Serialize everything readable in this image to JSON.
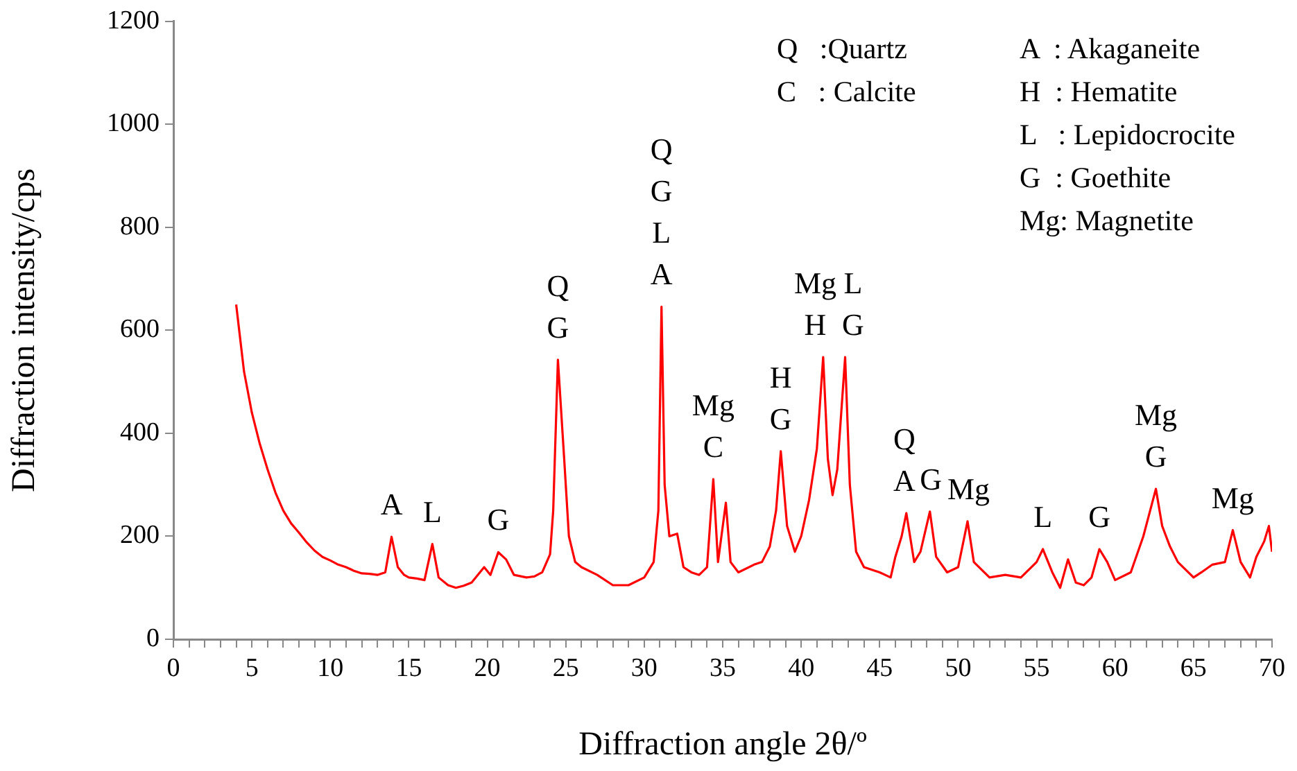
{
  "chart_data": {
    "type": "line",
    "xlabel": "Diffraction angle 2θ/º",
    "ylabel": "Diffraction intensity/cps",
    "xlim": [
      0,
      70
    ],
    "ylim": [
      0,
      1200
    ],
    "xticks": [
      0,
      {
        "value": 1,
        "label": null
      },
      {
        "value": 2,
        "label": null
      },
      {
        "value": 3,
        "label": null
      },
      {
        "value": 4,
        "label": null
      },
      5,
      {
        "value": 6,
        "label": null
      },
      {
        "value": 7,
        "label": null
      },
      {
        "value": 8,
        "label": null
      },
      {
        "value": 9,
        "label": null
      },
      10,
      {
        "value": 11,
        "label": null
      },
      {
        "value": 12,
        "label": null
      },
      {
        "value": 13,
        "label": null
      },
      {
        "value": 14,
        "label": null
      },
      15,
      {
        "value": 16,
        "label": null
      },
      {
        "value": 17,
        "label": null
      },
      {
        "value": 18,
        "label": null
      },
      {
        "value": 19,
        "label": null
      },
      20,
      {
        "value": 21,
        "label": null
      },
      {
        "value": 22,
        "label": null
      },
      {
        "value": 23,
        "label": null
      },
      {
        "value": 24,
        "label": null
      },
      25,
      {
        "value": 26,
        "label": null
      },
      {
        "value": 27,
        "label": null
      },
      {
        "value": 28,
        "label": null
      },
      {
        "value": 29,
        "label": null
      },
      30,
      {
        "value": 31,
        "label": null
      },
      {
        "value": 32,
        "label": null
      },
      {
        "value": 33,
        "label": null
      },
      {
        "value": 34,
        "label": null
      },
      35,
      {
        "value": 36,
        "label": null
      },
      {
        "value": 37,
        "label": null
      },
      {
        "value": 38,
        "label": null
      },
      {
        "value": 39,
        "label": null
      },
      40,
      {
        "value": 41,
        "label": null
      },
      {
        "value": 42,
        "label": null
      },
      {
        "value": 43,
        "label": null
      },
      {
        "value": 44,
        "label": null
      },
      45,
      {
        "value": 46,
        "label": null
      },
      {
        "value": 47,
        "label": null
      },
      {
        "value": 48,
        "label": null
      },
      {
        "value": 49,
        "label": null
      },
      50,
      {
        "value": 51,
        "label": null
      },
      {
        "value": 52,
        "label": null
      },
      {
        "value": 53,
        "label": null
      },
      {
        "value": 54,
        "label": null
      },
      55,
      {
        "value": 56,
        "label": null
      },
      {
        "value": 57,
        "label": null
      },
      {
        "value": 58,
        "label": null
      },
      {
        "value": 59,
        "label": null
      },
      60,
      {
        "value": 61,
        "label": null
      },
      {
        "value": 62,
        "label": null
      },
      {
        "value": 63,
        "label": null
      },
      {
        "value": 64,
        "label": null
      },
      65,
      {
        "value": 66,
        "label": null
      },
      {
        "value": 67,
        "label": null
      },
      {
        "value": 68,
        "label": null
      },
      {
        "value": 69,
        "label": null
      },
      70
    ],
    "yticks": [
      0,
      200,
      400,
      600,
      800,
      1000,
      1200
    ],
    "grid": false,
    "legend": false,
    "marker": "none",
    "line_style": "solid",
    "series": [
      {
        "color": "#ff0000",
        "x": [
          4,
          4.5,
          5,
          5.5,
          6,
          6.5,
          7,
          7.5,
          8,
          8.5,
          9,
          9.5,
          10,
          10.5,
          11,
          11.5,
          12,
          12.5,
          13,
          13.5,
          13.9,
          14.3,
          14.7,
          15,
          15.5,
          16,
          16.5,
          16.9,
          17.5,
          18,
          18.5,
          19,
          19.8,
          20.2,
          20.7,
          21.2,
          21.7,
          22.5,
          23,
          23.5,
          24,
          24.2,
          24.5,
          24.9,
          25.2,
          25.6,
          26,
          27,
          28,
          29,
          30,
          30.6,
          30.9,
          31.1,
          31.3,
          31.6,
          32.1,
          32.5,
          33,
          33.5,
          34,
          34.4,
          34.7,
          35.2,
          35.5,
          36,
          37,
          37.5,
          38,
          38.4,
          38.7,
          39.1,
          39.6,
          40,
          40.5,
          41,
          41.4,
          41.7,
          42,
          42.3,
          42.8,
          43.1,
          43.5,
          44,
          45,
          45.7,
          46,
          46.4,
          46.7,
          47.2,
          47.6,
          48.2,
          48.6,
          49.3,
          50,
          50.6,
          51,
          52,
          53,
          54,
          55,
          55.4,
          56,
          56.5,
          57,
          57.5,
          58,
          58.5,
          59,
          59.5,
          60,
          61,
          61.8,
          62.6,
          63,
          63.5,
          64,
          65,
          65.5,
          66.2,
          67,
          67.5,
          68,
          68.6,
          69,
          69.5,
          69.8,
          70
        ],
        "values": [
          650,
          520,
          440,
          380,
          330,
          285,
          250,
          225,
          207,
          188,
          172,
          160,
          153,
          145,
          140,
          133,
          128,
          127,
          125,
          130,
          199,
          140,
          125,
          120,
          118,
          115,
          185,
          120,
          105,
          100,
          104,
          110,
          140,
          125,
          169,
          155,
          125,
          120,
          122,
          130,
          165,
          250,
          543,
          350,
          200,
          150,
          140,
          125,
          105,
          105,
          120,
          150,
          250,
          646,
          300,
          200,
          205,
          140,
          130,
          125,
          140,
          311,
          150,
          265,
          150,
          130,
          145,
          150,
          180,
          250,
          365,
          220,
          170,
          200,
          270,
          370,
          548,
          350,
          280,
          330,
          548,
          300,
          170,
          140,
          130,
          120,
          160,
          200,
          245,
          150,
          170,
          248,
          160,
          130,
          140,
          229,
          150,
          120,
          125,
          120,
          150,
          175,
          130,
          100,
          155,
          110,
          105,
          120,
          175,
          150,
          115,
          130,
          200,
          292,
          220,
          180,
          150,
          120,
          130,
          145,
          150,
          212,
          150,
          120,
          160,
          190,
          220,
          170
        ]
      }
    ],
    "annotations": [
      {
        "text": "A",
        "x": 13.9,
        "y": 199
      },
      {
        "text": "L",
        "x": 16.5,
        "y": 185
      },
      {
        "text": "G",
        "x": 20.7,
        "y": 169
      },
      {
        "text": "Q\nG",
        "x": 24.5,
        "y": 543
      },
      {
        "text": "Q\nG\nL\nA",
        "x": 31.1,
        "y": 646
      },
      {
        "text": "Mg\nC",
        "x": 34.4,
        "y": 311
      },
      {
        "text": "H\nG",
        "x": 38.7,
        "y": 365
      },
      {
        "text": "Mg\nH",
        "x": 41.4,
        "y": 548
      },
      {
        "text": "L\nG",
        "x": 42.8,
        "y": 548
      },
      {
        "text": "Q\nA",
        "x": 46.7,
        "y": 245
      },
      {
        "text": "G",
        "x": 48.2,
        "y": 248
      },
      {
        "text": "Mg",
        "x": 50.6,
        "y": 229
      },
      {
        "text": "L",
        "x": 55.4,
        "y": 175
      },
      {
        "text": "G",
        "x": 59,
        "y": 175
      },
      {
        "text": "Mg\nG",
        "x": 62.6,
        "y": 292
      },
      {
        "text": "Mg",
        "x": 67.5,
        "y": 212
      },
      "Q   :Quartz",
      "C   : Calcite",
      "A  : Akaganeite",
      "H  : Hematite",
      "L   : Lepidocrocite",
      "G  : Goethite",
      "Mg: Magnetite"
    ]
  }
}
